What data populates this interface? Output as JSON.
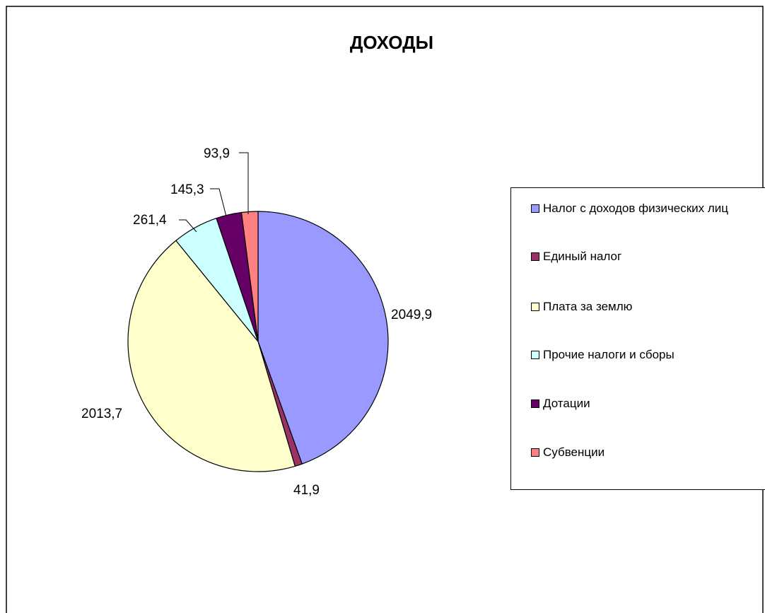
{
  "chart_data": {
    "type": "pie",
    "title": "ДОХОДЫ",
    "categories": [
      "Налог с доходов физических лиц",
      "Единый налог",
      "Плата за землю",
      "Прочие налоги и сборы",
      "Дотации",
      "Субвенции"
    ],
    "values": [
      2049.9,
      41.9,
      2013.7,
      261.4,
      145.3,
      93.9
    ],
    "data_labels": [
      "2049,9",
      "41,9",
      "2013,7",
      "261,4",
      "145,3",
      "93,9"
    ],
    "colors": [
      "#9999ff",
      "#993366",
      "#ffffcc",
      "#ccffff",
      "#660066",
      "#ff8080"
    ],
    "legend": "right",
    "start_angle": "top, clockwise"
  }
}
